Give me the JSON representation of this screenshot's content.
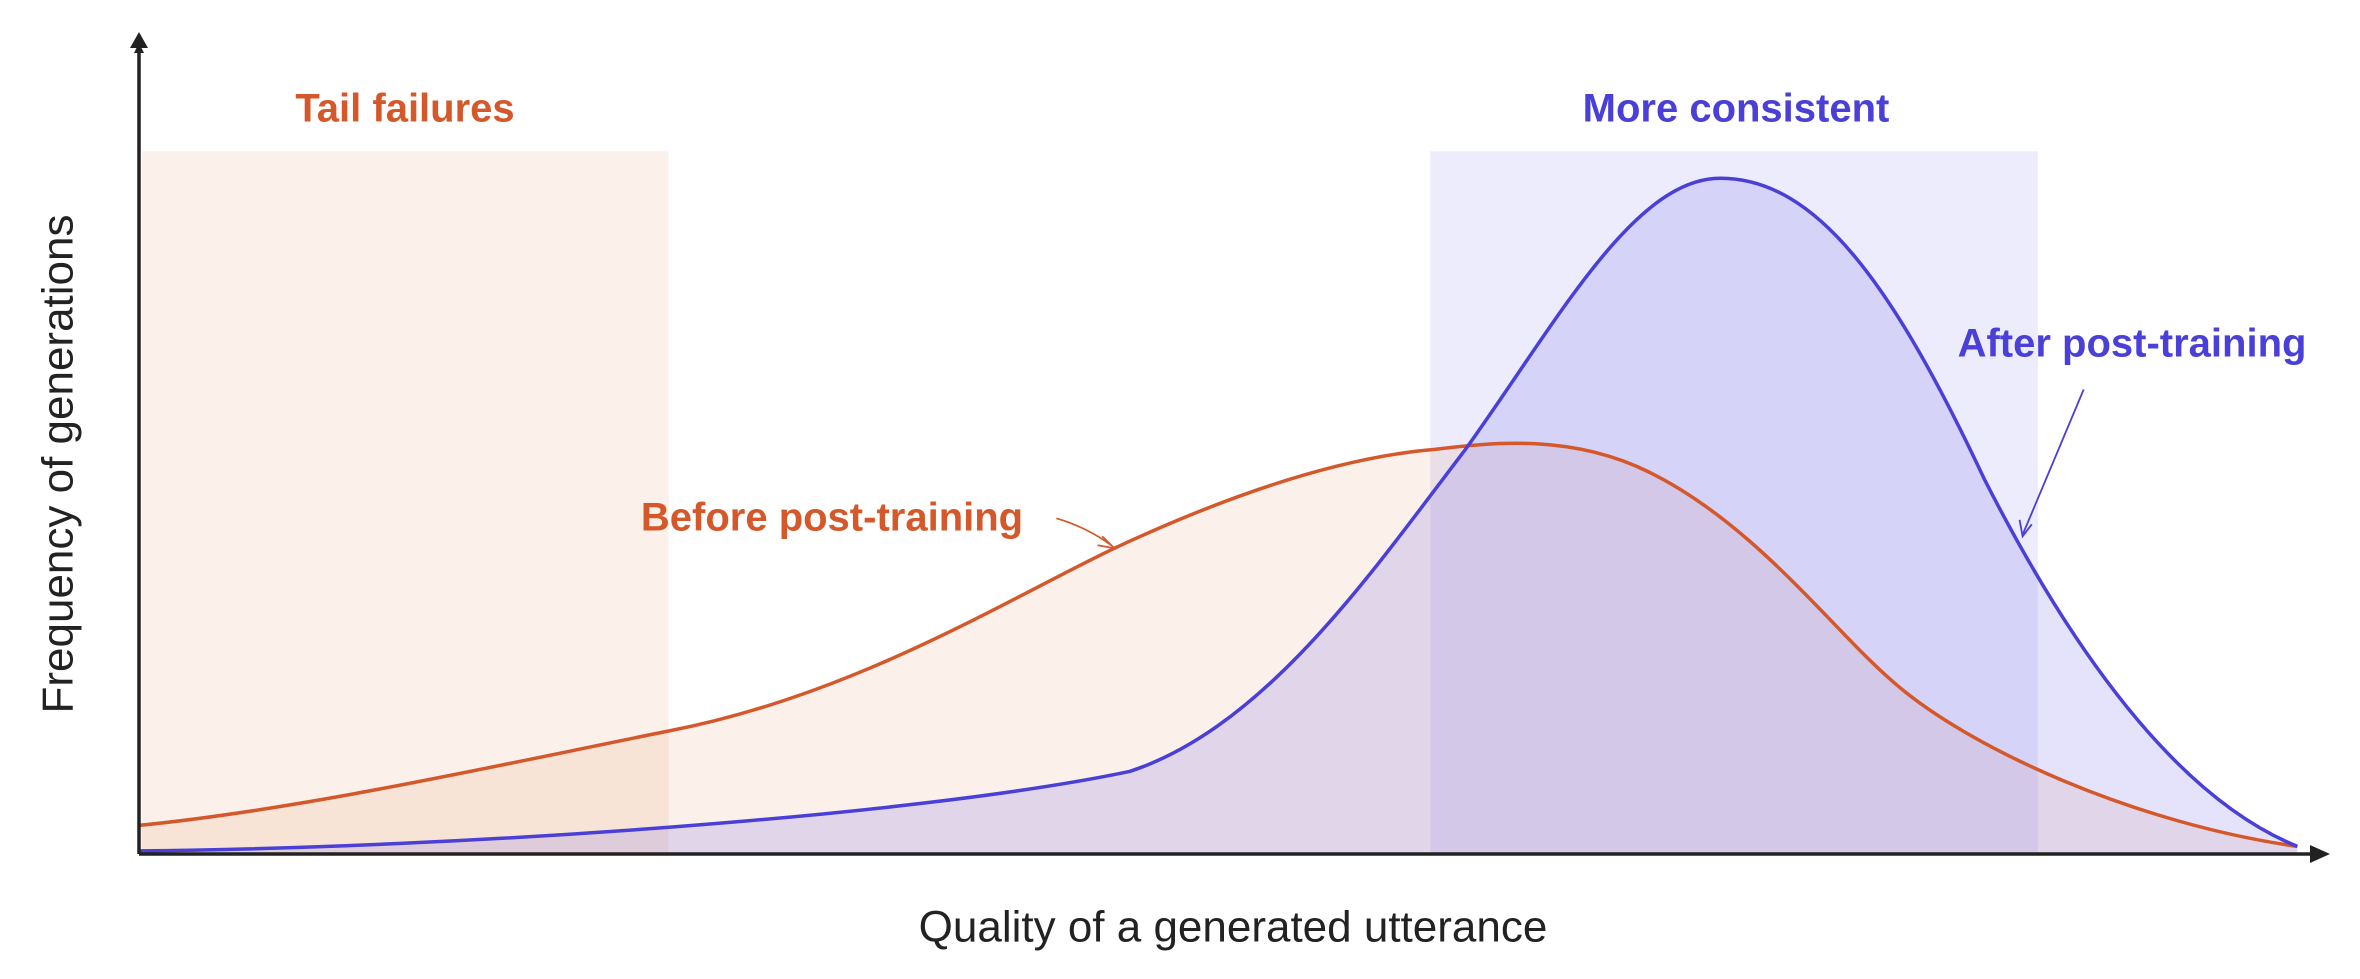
{
  "axes": {
    "x_label": "Quality of a generated utterance",
    "y_label": "Frequency of generations"
  },
  "regions": {
    "tail": "Tail failures",
    "consistent": "More consistent"
  },
  "curves": {
    "before": "Before post-training",
    "after": "After post-training"
  }
}
